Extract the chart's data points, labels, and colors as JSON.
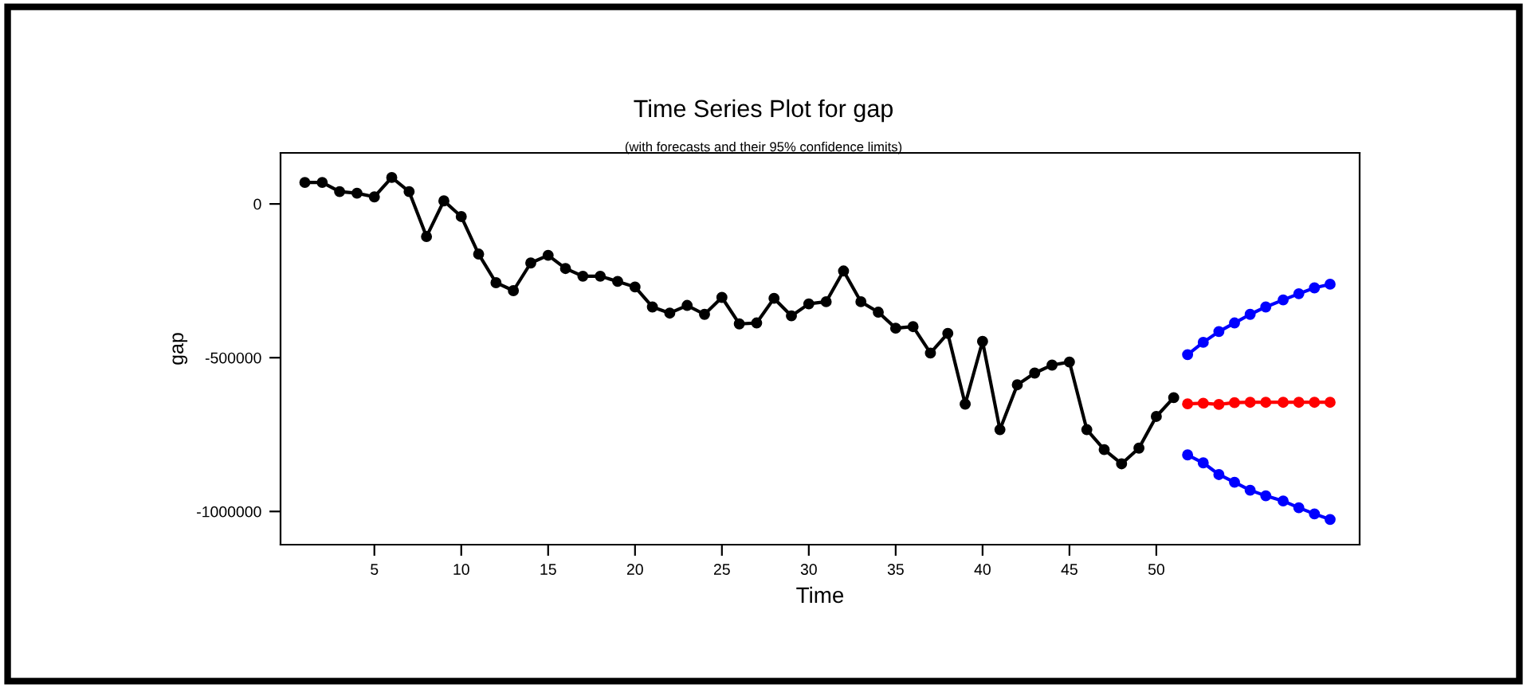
{
  "chart_data": {
    "type": "line",
    "title": "Time Series Plot for gap",
    "subtitle": "(with forecasts and their 95% confidence limits)",
    "xlabel": "Time",
    "ylabel": "gap",
    "xlim": [
      -0.4,
      61.7
    ],
    "ylim": [
      -1108000,
      166000
    ],
    "xticks": [
      5,
      10,
      15,
      20,
      25,
      30,
      35,
      40,
      45,
      50
    ],
    "yticks": [
      0,
      -500000,
      -1000000
    ],
    "marker": "circle",
    "line_style": "solid",
    "grid": false,
    "legend": false,
    "series": [
      {
        "color": "#000000",
        "x": [
          1,
          2,
          3,
          4,
          5,
          6,
          7,
          8,
          9,
          10,
          11,
          12,
          13,
          14,
          15,
          16,
          17,
          18,
          19,
          20,
          21,
          22,
          23,
          24,
          25,
          26,
          27,
          28,
          29,
          30,
          31,
          32,
          33,
          34,
          35,
          36,
          37,
          38,
          39,
          40,
          41,
          42,
          43,
          44,
          45,
          46,
          47,
          48,
          49,
          50,
          51
        ],
        "values": [
          70000,
          70000,
          40000,
          35000,
          23000,
          86000,
          40000,
          -106000,
          10000,
          -41000,
          -163000,
          -256000,
          -282000,
          -192000,
          -167000,
          -210000,
          -235000,
          -235000,
          -252000,
          -270000,
          -335000,
          -355000,
          -330000,
          -359000,
          -304000,
          -390000,
          -387000,
          -307000,
          -364000,
          -325000,
          -318000,
          -218000,
          -318000,
          -352000,
          -404000,
          -399000,
          -485000,
          -421000,
          -651000,
          -447000,
          -734000,
          -588000,
          -550000,
          -524000,
          -514000,
          -734000,
          -799000,
          -845000,
          -794000,
          -691000,
          -630000
        ]
      },
      {
        "color": "#ff0000",
        "x": [
          51.8,
          52.7,
          53.6,
          54.5,
          55.4,
          56.3,
          57.3,
          58.2,
          59.1,
          60.0
        ],
        "values": [
          -650000,
          -648000,
          -652000,
          -646000,
          -645000,
          -645000,
          -645000,
          -645000,
          -645000,
          -645000
        ]
      },
      {
        "color": "#0000ff",
        "x": [
          51.8,
          52.7,
          53.6,
          54.5,
          55.4,
          56.3,
          57.3,
          58.2,
          59.1,
          60.0
        ],
        "values": [
          -490000,
          -450000,
          -415000,
          -387000,
          -359000,
          -335000,
          -312000,
          -292000,
          -273000,
          -261000
        ]
      },
      {
        "color": "#0000ff",
        "x": [
          51.8,
          52.7,
          53.6,
          54.5,
          55.4,
          56.3,
          57.3,
          58.2,
          59.1,
          60.0
        ],
        "values": [
          -816000,
          -842000,
          -880000,
          -905000,
          -931000,
          -949000,
          -966000,
          -988000,
          -1008000,
          -1026000
        ]
      }
    ]
  }
}
